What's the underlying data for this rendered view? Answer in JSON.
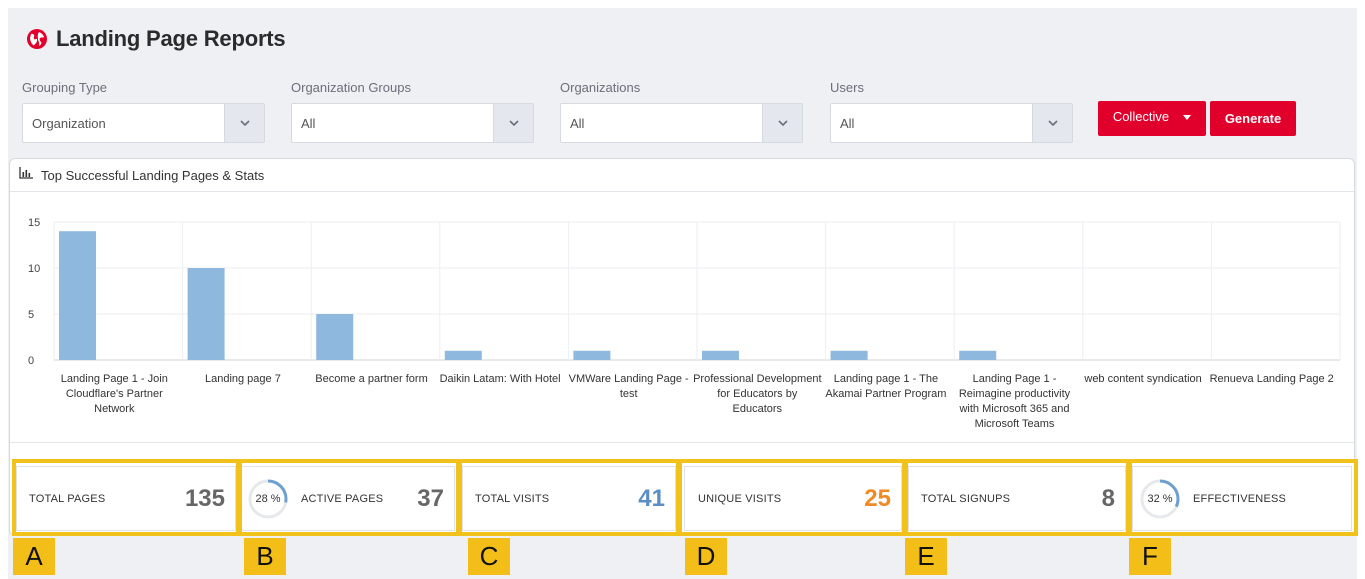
{
  "header": {
    "title": "Landing Page Reports",
    "icon": "globe-icon"
  },
  "filters": [
    {
      "label": "Grouping Type",
      "value": "Organization"
    },
    {
      "label": "Organization Groups",
      "value": "All"
    },
    {
      "label": "Organizations",
      "value": "All"
    },
    {
      "label": "Users",
      "value": "All"
    }
  ],
  "buttons": {
    "collective": "Collective",
    "generate": "Generate"
  },
  "panel": {
    "title": "Top Successful Landing Pages & Stats",
    "icon": "bar-chart-icon"
  },
  "chart_data": {
    "type": "bar",
    "categories": [
      "Landing Page 1 - Join Cloudflare's Partner Network",
      "Landing page 7",
      "Become a partner form",
      "Daikin Latam: With Hotel",
      "VMWare Landing Page - test",
      "Professional Development for Educators by Educators",
      "Landing page 1 - The Akamai Partner Program",
      "Landing Page 1 - Reimagine productivity with Microsoft 365 and Microsoft Teams",
      "web content syndication",
      "Renueva Landing Page 2"
    ],
    "values": [
      14,
      10,
      5,
      1,
      1,
      1,
      1,
      1,
      0,
      0
    ],
    "yticks": [
      "15",
      "10",
      "5",
      "0"
    ],
    "ylim": [
      0,
      15
    ],
    "grid": true,
    "bar_color": "#8fb8df"
  },
  "stats": {
    "total_pages": {
      "label": "TOTAL PAGES",
      "value": "135",
      "color": "#666666"
    },
    "active_pages": {
      "label": "ACTIVE PAGES",
      "value": "37",
      "percent_text": "28 %",
      "percent": 28,
      "color": "#666666"
    },
    "total_visits": {
      "label": "TOTAL VISITS",
      "value": "41",
      "color": "#5b8ec4"
    },
    "unique_visits": {
      "label": "UNIQUE VISITS",
      "value": "25",
      "color": "#f08a24"
    },
    "total_signups": {
      "label": "TOTAL SIGNUPS",
      "value": "8",
      "color": "#666666"
    },
    "effectiveness": {
      "label": "EFFECTIVENESS",
      "percent_text": "32 %",
      "percent": 32
    }
  },
  "tags": [
    "A",
    "B",
    "C",
    "D",
    "E",
    "F"
  ],
  "colors": {
    "accent": "#e0002b",
    "highlight": "#f1c21b",
    "gauge": "#6d9fd1"
  }
}
